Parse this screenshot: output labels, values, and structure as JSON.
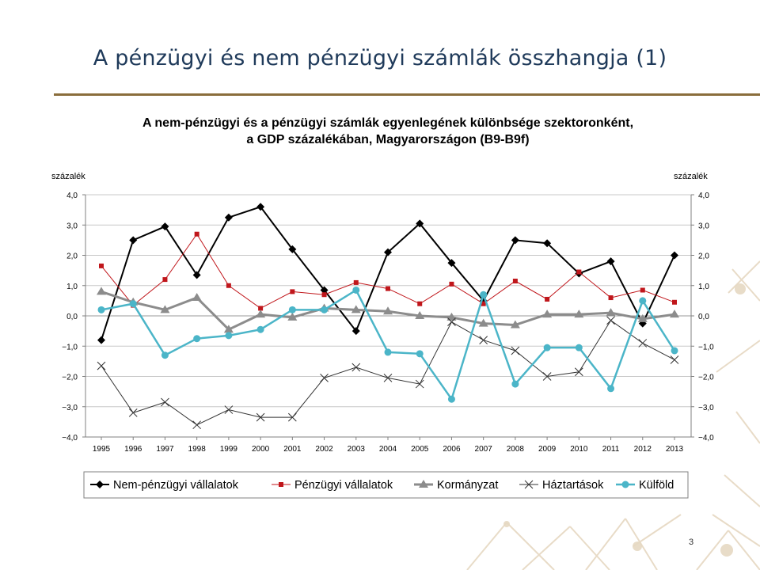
{
  "slide": {
    "title": "A pénzügyi és nem pénzügyi számlák összhangja (1)",
    "page_number": "3"
  },
  "chart_data": {
    "type": "line",
    "title": "A nem-pénzügyi és a pénzügyi számlák egyenlegének különbsége szektoronként,",
    "subtitle": "a GDP százalékában, Magyarországon (B9-B9f)",
    "ylabel_left": "százalék",
    "ylabel_right": "százalék",
    "ylim": [
      -4,
      4
    ],
    "yticks": [
      "4,0",
      "3,0",
      "2,0",
      "1,0",
      "0,0",
      "−1,0",
      "−2,0",
      "−3,0",
      "−4,0"
    ],
    "ytick_values": [
      4,
      3,
      2,
      1,
      0,
      -1,
      -2,
      -3,
      -4
    ],
    "categories": [
      "1995",
      "1996",
      "1997",
      "1998",
      "1999",
      "2000",
      "2001",
      "2002",
      "2003",
      "2004",
      "2005",
      "2006",
      "2007",
      "2008",
      "2009",
      "2010",
      "2011",
      "2012",
      "2013"
    ],
    "grid": "horizontal",
    "legend_position": "bottom",
    "series": [
      {
        "name": "Nem-pénzügyi vállalatok",
        "color": "#000000",
        "marker": "diamond",
        "values": [
          -0.8,
          2.5,
          2.95,
          1.35,
          3.25,
          3.6,
          2.2,
          0.85,
          -0.5,
          2.1,
          3.05,
          1.75,
          0.5,
          2.5,
          2.4,
          1.4,
          1.8,
          -0.25,
          2.0
        ]
      },
      {
        "name": "Pénzügyi vállalatok",
        "color": "#c0161b",
        "marker": "square",
        "values": [
          1.65,
          0.35,
          1.2,
          2.7,
          1.0,
          0.25,
          0.8,
          0.7,
          1.1,
          0.9,
          0.4,
          1.05,
          0.4,
          1.15,
          0.55,
          1.45,
          0.6,
          0.85,
          0.45
        ]
      },
      {
        "name": "Kormányzat",
        "color": "#8c8c8c",
        "marker": "triangle",
        "values": [
          0.8,
          0.45,
          0.2,
          0.6,
          -0.45,
          0.05,
          -0.05,
          0.25,
          0.2,
          0.15,
          0.0,
          -0.05,
          -0.25,
          -0.3,
          0.05,
          0.05,
          0.1,
          -0.1,
          0.05
        ]
      },
      {
        "name": "Háztartások",
        "color": "#333333",
        "marker": "x",
        "values": [
          -1.65,
          -3.2,
          -2.85,
          -3.6,
          -3.1,
          -3.35,
          -3.35,
          -2.05,
          -1.7,
          -2.05,
          -2.25,
          -0.2,
          -0.8,
          -1.15,
          -2.0,
          -1.85,
          -0.15,
          -0.9,
          -1.45
        ]
      },
      {
        "name": "Külföld",
        "color": "#4bb5c8",
        "marker": "circle",
        "values": [
          0.2,
          0.4,
          -1.3,
          -0.75,
          -0.65,
          -0.45,
          0.2,
          0.2,
          0.85,
          -1.2,
          -1.25,
          -2.75,
          0.7,
          -2.25,
          -1.05,
          -1.05,
          -2.4,
          0.5,
          -1.15
        ]
      }
    ]
  }
}
